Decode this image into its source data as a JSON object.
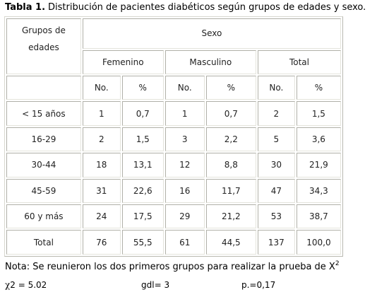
{
  "caption": {
    "label": "Tabla  1.",
    "text": "Distribución de pacientes diabéticos según grupos de  edades y sexo."
  },
  "table": {
    "group_header_line1": "Grupos de",
    "group_header_line2": "edades",
    "sexo_header": "Sexo",
    "sex_groups": [
      "Femenino",
      "Masculino",
      "Total"
    ],
    "sub_headers": [
      "No.",
      "%",
      "No.",
      "%",
      "No.",
      "%"
    ],
    "rows": [
      {
        "group": "< 15 años",
        "values": [
          "1",
          "0,7",
          "1",
          "0,7",
          "2",
          "1,5"
        ]
      },
      {
        "group": "16-29",
        "values": [
          "2",
          "1,5",
          "3",
          "2,2",
          "5",
          "3,6"
        ]
      },
      {
        "group": "30-44",
        "values": [
          "18",
          "13,1",
          "12",
          "8,8",
          "30",
          "21,9"
        ]
      },
      {
        "group": "45-59",
        "values": [
          "31",
          "22,6",
          "16",
          "11,7",
          "47",
          "34,3"
        ]
      },
      {
        "group": "60 y más",
        "values": [
          "24",
          "17,5",
          "29",
          "21,2",
          "53",
          "38,7"
        ]
      },
      {
        "group": "Total",
        "values": [
          "76",
          "55,5",
          "61",
          "44,5",
          "137",
          "100,0"
        ]
      }
    ]
  },
  "note": {
    "text": "Nota: Se reunieron los dos primeros grupos para realizar la prueba de X",
    "superscript": "2"
  },
  "stats": {
    "chi_symbol": "χ",
    "chi_rest": "2 = 5.02",
    "gdl": "gdl= 3",
    "p": "p.=0,17"
  }
}
